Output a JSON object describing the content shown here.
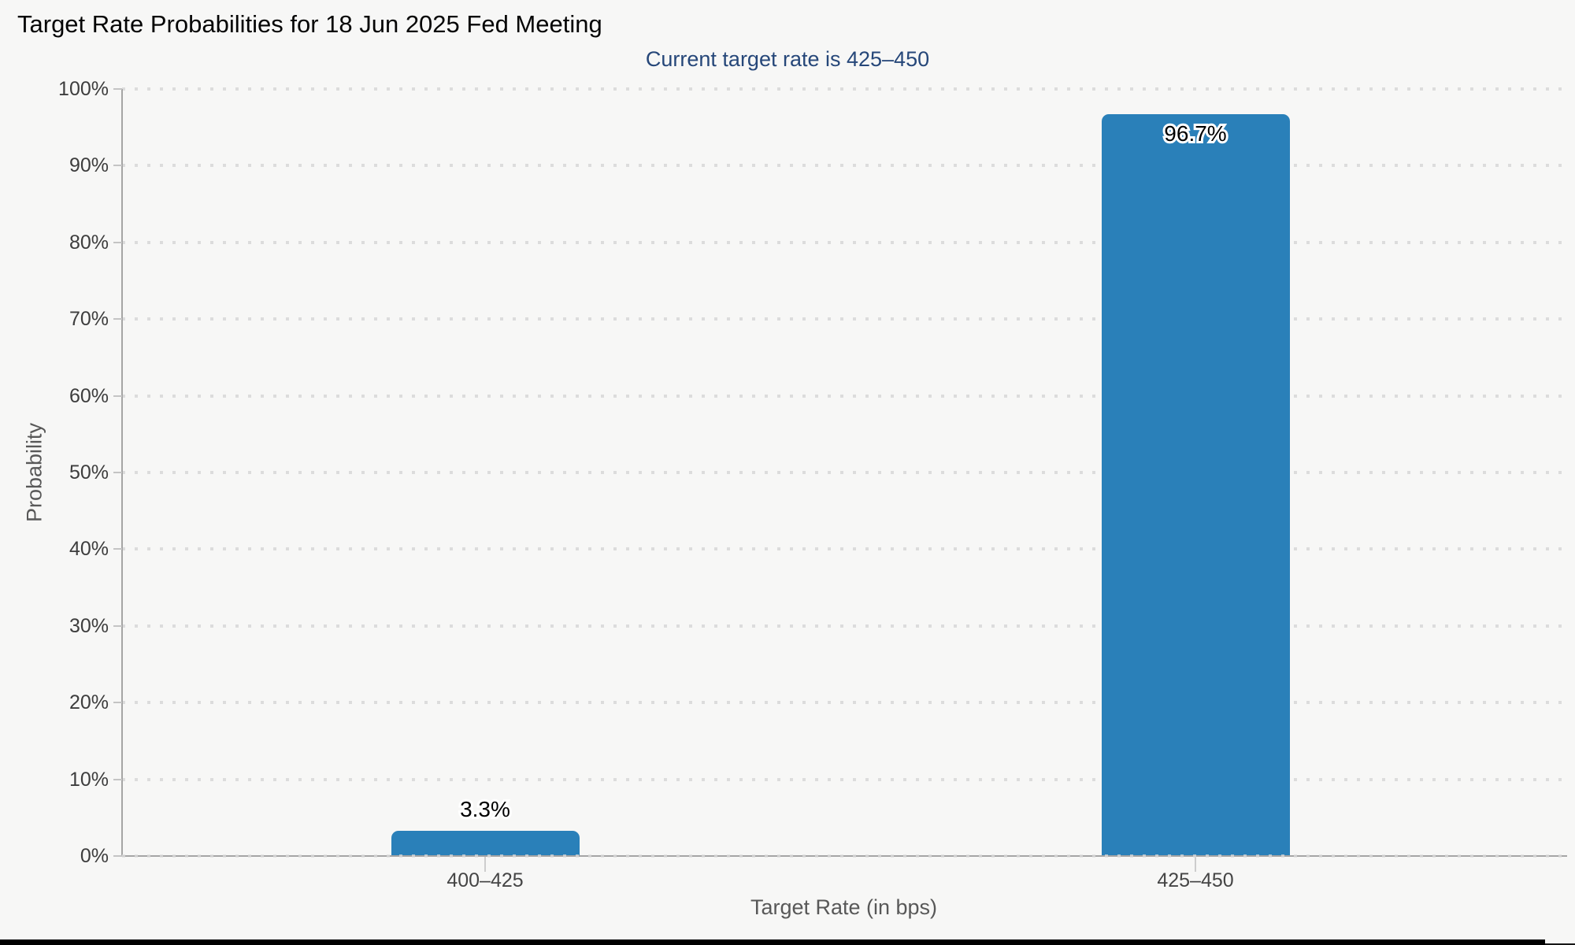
{
  "chart_data": {
    "type": "bar",
    "title": "Target Rate Probabilities for 18 Jun 2025 Fed Meeting",
    "subtitle": "Current target rate is 425–450",
    "xlabel": "Target Rate (in bps)",
    "ylabel": "Probability",
    "categories": [
      "400–425",
      "425–450"
    ],
    "values": [
      3.3,
      96.7
    ],
    "value_labels": [
      "3.3%",
      "96.7%"
    ],
    "ylim": [
      0,
      100
    ],
    "ytick_step": 10,
    "ytick_labels": [
      "0%",
      "10%",
      "20%",
      "30%",
      "40%",
      "50%",
      "60%",
      "70%",
      "80%",
      "90%",
      "100%"
    ],
    "grid": "horizontal-dotted",
    "legend_position": "none",
    "colors": {
      "bar": "#2a80b9",
      "background": "#f7f7f6",
      "title": "#050505",
      "subtitle": "#264779",
      "axis": "#a5a5a5",
      "grid_dot": "#dcdcdc",
      "tick_label": "#3d3d3d",
      "category_label": "#454545",
      "axis_title": "#585858",
      "value_label": "#000000",
      "value_halo": "#ffffff",
      "footer_bar": "#000000"
    }
  }
}
